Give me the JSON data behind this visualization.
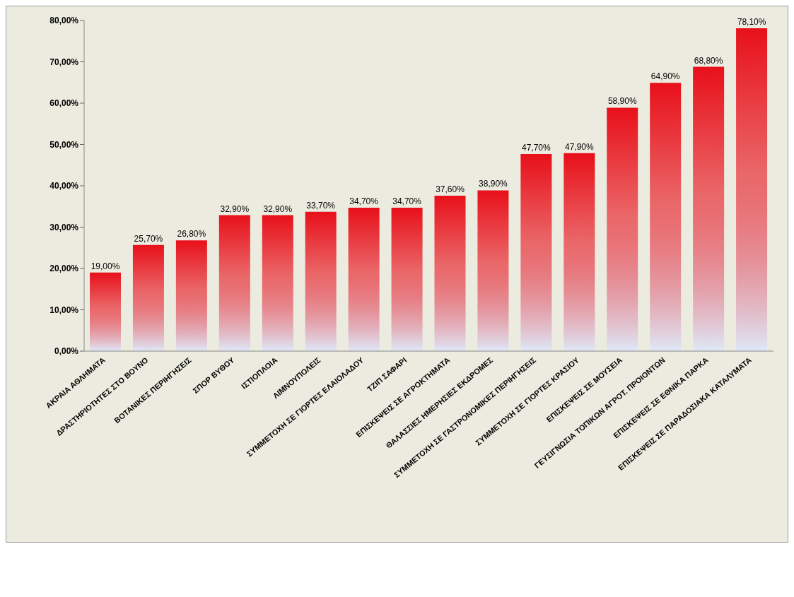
{
  "chart_data": {
    "type": "bar",
    "categories": [
      "ΑΚΡΑΙΑ ΑΘΛΗΜΑΤΑ",
      "ΔΡΑΣΤΗΡΙΟΤΗΤΕΣ ΣΤΟ ΒΟΥΝΟ",
      "ΒΟΤΑΝΙΚΕΣ ΠΕΡΙΗΓΗΣΕΙΣ",
      "ΣΠΟΡ ΒΥΘΟΥ",
      "ΙΣΤΙΟΠΛΟΙΑ",
      "ΛΙΜΝΟΥΠΟΛΕΙΣ",
      "ΣΥΜΜΕΤΟΧΗ ΣΕ ΓΙΟΡΤΕΣ ΕΛΑΙΟΛΑΔΟΥ",
      "ΤΖΙΠ ΣΑΦΑΡΙ",
      "ΕΠΙΣΚΕΨΕΙΣ ΣΕ ΑΓΡΟΚΤΗΜΑΤΑ",
      "ΘΑΛΑΣΣΙΕΣ ΗΜΕΡΗΣΙΕΣ ΕΚΔΡΟΜΕΣ",
      "ΣΥΜΜΕΤΟΧΗ ΣΕ ΓΑΣΤΡΟΝΟΜΙΚΕΣ ΠΕΡΙΗΓΗΣΕΙΣ",
      "ΣΥΜΜΕΤΟΧΗ ΣΕ ΓΙΟΡΤΕΣ ΚΡΑΣΙΟΥ",
      "ΕΠΙΣΚΕΨΕΙΣ ΣΕ ΜΟΥΣΕΙΑ",
      "ΓΕΥΣΙΓΝΩΣΙΑ ΤΟΠΙΚΩΝ ΑΓΡΟΤ. ΠΡΟΙΟΝΤΩΝ",
      "ΕΠΙΣΚΕΨΕΙΣ ΣΕ ΕΘΝΙΚΑ ΠΑΡΚΑ",
      "ΕΠΙΣΚΕΨΕΙΣ ΣΕ ΠΑΡΑΔΟΣΙΑΚΑ ΚΑΤΑΛΥΜΑΤΑ"
    ],
    "values": [
      19.0,
      25.7,
      26.8,
      32.9,
      32.9,
      33.7,
      34.7,
      34.7,
      37.6,
      38.9,
      47.7,
      47.9,
      58.9,
      64.9,
      68.8,
      78.1
    ],
    "value_labels": [
      "19,00%",
      "25,70%",
      "26,80%",
      "32,90%",
      "32,90%",
      "33,70%",
      "34,70%",
      "34,70%",
      "37,60%",
      "38,90%",
      "47,70%",
      "47,90%",
      "58,90%",
      "64,90%",
      "68,80%",
      "78,10%"
    ],
    "color": "#e8101a",
    "ylim": [
      0,
      80
    ],
    "yticks": [
      {
        "value": 0,
        "label": "0,00%"
      },
      {
        "value": 10,
        "label": "10,00%"
      },
      {
        "value": 20,
        "label": "20,00%"
      },
      {
        "value": 30,
        "label": "30,00%"
      },
      {
        "value": 40,
        "label": "40,00%"
      },
      {
        "value": 50,
        "label": "50,00%"
      },
      {
        "value": 60,
        "label": "60,00%"
      },
      {
        "value": 70,
        "label": "70,00%"
      },
      {
        "value": 80,
        "label": "80,00%"
      }
    ],
    "grid": false
  }
}
